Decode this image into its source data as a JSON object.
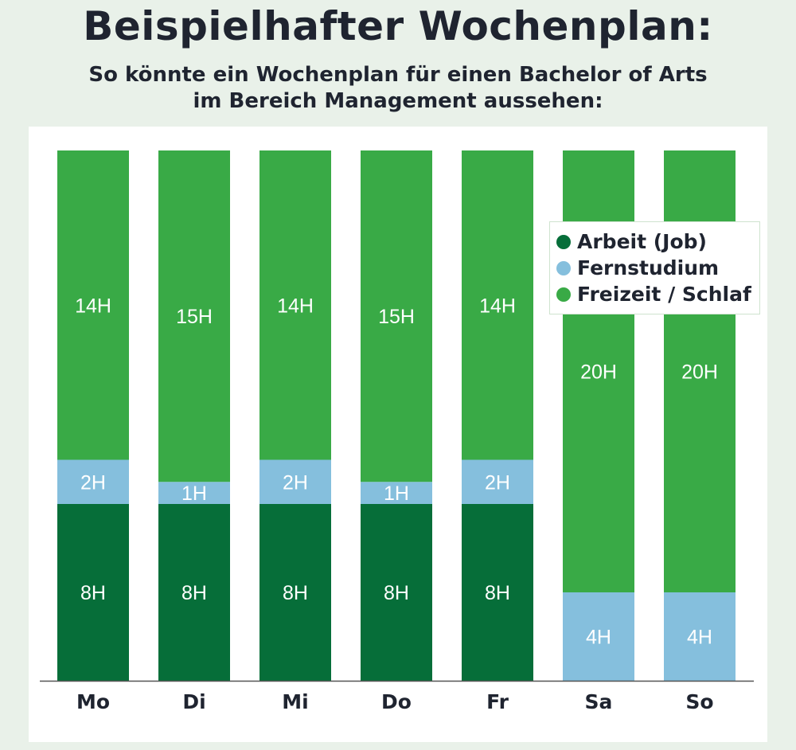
{
  "title": "Beispielhafter Wochenplan:",
  "subtitle": {
    "line1": "So könnte ein Wochenplan für einen Bachelor of Arts",
    "line2": "im Bereich Management aussehen:"
  },
  "colors": {
    "arbeit": "#066e39",
    "fernstudium": "#85bfdd",
    "freizeit": "#39aa46",
    "axis": "#555555",
    "text": "#1f2430"
  },
  "chart_data": {
    "type": "bar",
    "stacked": true,
    "categories": [
      "Mo",
      "Di",
      "Mi",
      "Do",
      "Fr",
      "Sa",
      "So"
    ],
    "series": [
      {
        "name": "Arbeit (Job)",
        "values": [
          8,
          8,
          8,
          8,
          8,
          0,
          0
        ]
      },
      {
        "name": "Fernstudium",
        "values": [
          2,
          1,
          2,
          1,
          2,
          4,
          4
        ]
      },
      {
        "name": "Freizeit / Schlaf",
        "values": [
          14,
          15,
          14,
          15,
          14,
          20,
          20
        ]
      }
    ],
    "value_suffix": "H",
    "ylim": [
      0,
      24
    ],
    "xlabel": "",
    "ylabel": "",
    "grid": false,
    "legend_position": "top-right"
  }
}
